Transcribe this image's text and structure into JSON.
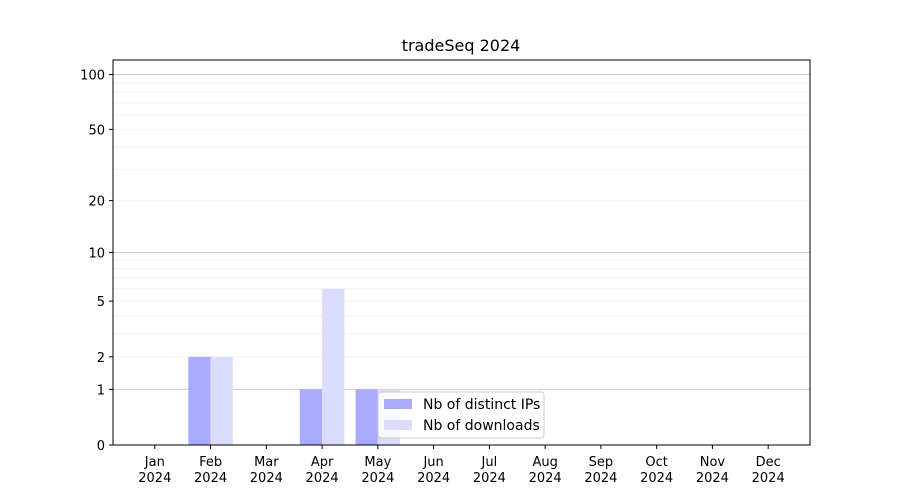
{
  "chart_data": {
    "type": "bar",
    "title": "tradeSeq 2024",
    "xlabel": "",
    "ylabel": "",
    "yscale": "symlog",
    "ylim": [
      0,
      120
    ],
    "y_ticks": [
      0,
      1,
      2,
      5,
      10,
      20,
      50,
      100
    ],
    "y_tick_labels": [
      "0",
      "1",
      "2",
      "5",
      "10",
      "20",
      "50",
      "100"
    ],
    "categories": [
      [
        "Jan",
        "2024"
      ],
      [
        "Feb",
        "2024"
      ],
      [
        "Mar",
        "2024"
      ],
      [
        "Apr",
        "2024"
      ],
      [
        "May",
        "2024"
      ],
      [
        "Jun",
        "2024"
      ],
      [
        "Jul",
        "2024"
      ],
      [
        "Aug",
        "2024"
      ],
      [
        "Sep",
        "2024"
      ],
      [
        "Oct",
        "2024"
      ],
      [
        "Nov",
        "2024"
      ],
      [
        "Dec",
        "2024"
      ]
    ],
    "series": [
      {
        "name": "Nb of distinct IPs",
        "color": "#aaaaff",
        "values": [
          0,
          2,
          0,
          1,
          1,
          0,
          0,
          0,
          0,
          0,
          0,
          0
        ]
      },
      {
        "name": "Nb of downloads",
        "color": "#dcdcff",
        "values": [
          0,
          2,
          0,
          6,
          1,
          0,
          0,
          0,
          0,
          0,
          0,
          0
        ]
      }
    ],
    "grid": true,
    "legend_position": "lower-center"
  }
}
